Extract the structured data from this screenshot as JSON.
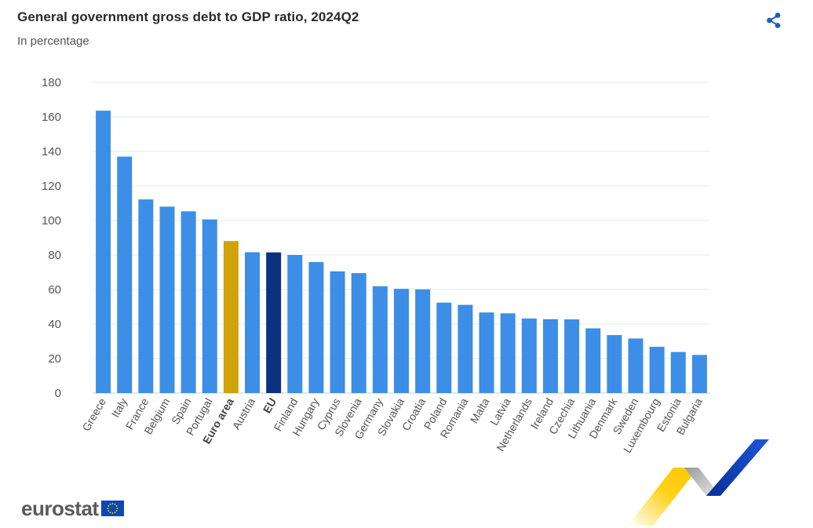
{
  "title": "General government gross debt to GDP ratio, 2024Q2",
  "subtitle": "In percentage",
  "logo": {
    "text": "eurostat",
    "flag_icon": "eu-flag-icon"
  },
  "share": {
    "icon": "share-icon"
  },
  "colors": {
    "bar": "#3d8ee6",
    "euro_area": "#cfa40b",
    "eu": "#0c3181",
    "grid": "#e3e8ef",
    "axis_text": "#555555"
  },
  "chart_data": {
    "type": "bar",
    "title": "General government gross debt to GDP ratio, 2024Q2",
    "subtitle": "In percentage",
    "xlabel": "",
    "ylabel": "",
    "ylim": [
      0,
      180
    ],
    "yticks": [
      0,
      20,
      40,
      60,
      80,
      100,
      120,
      140,
      160,
      180
    ],
    "grid": true,
    "legend": "none",
    "categories": [
      "Greece",
      "Italy",
      "France",
      "Belgium",
      "Spain",
      "Portugal",
      "Euro area",
      "Austria",
      "EU",
      "Finland",
      "Hungary",
      "Cyprus",
      "Slovenia",
      "Germany",
      "Slovakia",
      "Croatia",
      "Poland",
      "Romania",
      "Malta",
      "Latvia",
      "Netherlands",
      "Ireland",
      "Czechia",
      "Lithuania",
      "Denmark",
      "Sweden",
      "Luxembourg",
      "Estonia",
      "Bulgaria"
    ],
    "values": [
      163.6,
      137.0,
      112.2,
      108.0,
      105.3,
      100.6,
      88.1,
      81.6,
      81.5,
      80.0,
      75.9,
      70.5,
      69.5,
      61.9,
      60.4,
      60.1,
      52.4,
      51.1,
      46.7,
      46.2,
      43.2,
      42.8,
      42.7,
      37.5,
      33.6,
      31.6,
      26.8,
      23.8,
      22.1
    ],
    "highlight": {
      "Euro area": "euro_area",
      "EU": "eu"
    },
    "bold_categories": [
      "Euro area",
      "EU"
    ]
  }
}
